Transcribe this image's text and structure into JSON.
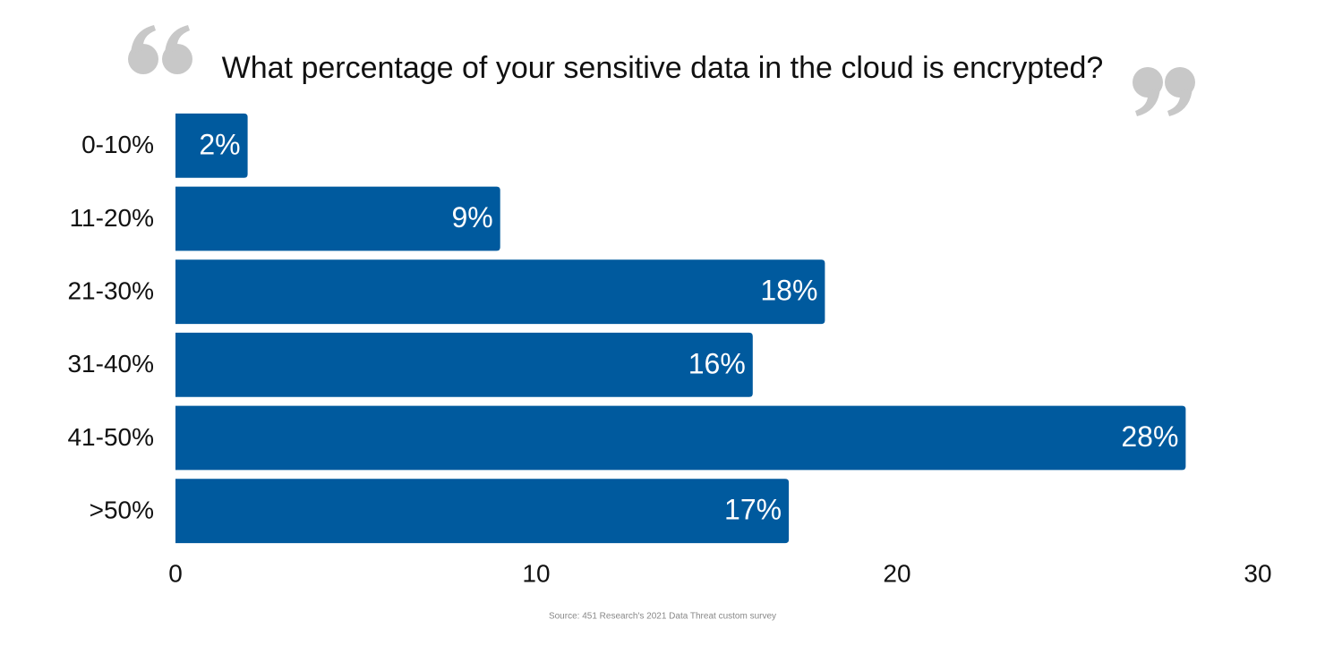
{
  "chart_data": {
    "type": "bar",
    "orientation": "horizontal",
    "title": "What percentage of your sensitive data in the cloud is encrypted?",
    "categories": [
      "0-10%",
      "11-20%",
      "21-30%",
      "31-40%",
      "41-50%",
      ">50%"
    ],
    "values": [
      2,
      9,
      18,
      16,
      28,
      17
    ],
    "value_labels": [
      "2%",
      "9%",
      "18%",
      "16%",
      "28%",
      "17%"
    ],
    "color": "#005a9e",
    "xlim": [
      0,
      30
    ],
    "xticks": [
      0,
      10,
      20,
      30
    ],
    "grid": false,
    "source": "Source: 451 Research's 2021 Data Threat custom survey"
  }
}
